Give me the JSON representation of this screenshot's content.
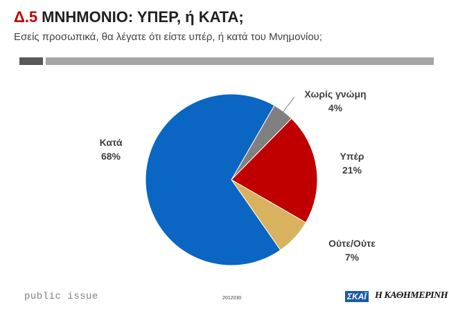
{
  "header": {
    "number": "Δ.5",
    "title": "ΜΝΗΜΟΝΙΟ: ΥΠΕΡ, ή ΚΑΤΑ;",
    "subtitle": "Εσείς προσωπικά, θα λέγατε ότι είστε υπέρ, ή κατά του Μνημονίου;"
  },
  "chart_data": {
    "type": "pie",
    "slices": [
      {
        "label": "Χωρίς γνώμη",
        "value": 4,
        "value_label": "4%",
        "color": "#808080"
      },
      {
        "label": "Υπέρ",
        "value": 21,
        "value_label": "21%",
        "color": "#c00000"
      },
      {
        "label": "Ούτε/Ούτε",
        "value": 7,
        "value_label": "7%",
        "color": "#d9b25f"
      },
      {
        "label": "Κατά",
        "value": 68,
        "value_label": "68%",
        "color": "#0a66c2"
      }
    ]
  },
  "footer": {
    "brand": "public issue",
    "code": "2012030",
    "logo_left": "ΣΚΑΪ",
    "logo_right": "Η ΚΑΘΗΜΕΡΙΝΗ"
  }
}
